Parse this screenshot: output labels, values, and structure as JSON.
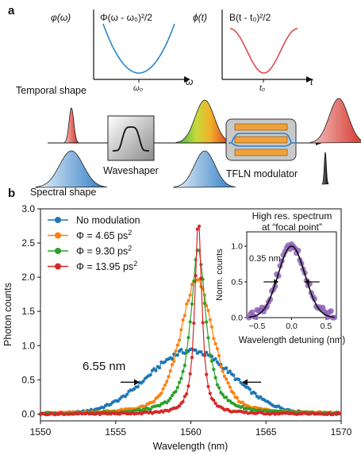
{
  "panel_a": {
    "label": "a",
    "phase_plot": {
      "ylabel": "φ(ω)",
      "curve_label": "Φ(ω - ω₀)²/2",
      "xlabel": "ω",
      "tick": "ω₀",
      "color": "#2b86c5"
    },
    "time_plot": {
      "ylabel": "ϕ(t)",
      "curve_label": "B(t - t₀)²/2",
      "xlabel": "t",
      "tick": "t₀",
      "color": "#e04b4b"
    },
    "temporal_label": "Temporal shape",
    "spectral_label": "Spectral shape",
    "waveshaper_label": "Waveshaper",
    "modulator_label": "TFLN modulator"
  },
  "chart_data": {
    "type": "line",
    "panel_label": "b",
    "xlabel": "Wavelength (nm)",
    "ylabel": "Photon counts",
    "xlim": [
      1550,
      1570
    ],
    "ylim": [
      -0.1,
      3.0
    ],
    "xticks": [
      "1550",
      "1555",
      "1560",
      "1565",
      "1570"
    ],
    "yticks": [
      "0.0",
      "0.5",
      "1.0",
      "1.5",
      "2.0",
      "2.5",
      "3.0"
    ],
    "legend_position": "top-left",
    "annotation": "6.55 nm",
    "annotation_range": [
      1556.7,
      1563.3
    ],
    "series": [
      {
        "name": "No modulation",
        "color": "#1f77b4",
        "peak": 0.93,
        "center": 1560.0,
        "fwhm": 6.55,
        "shape": "gaussian"
      },
      {
        "name": "Φ =  4.65 ps",
        "sup": "2",
        "color": "#ff7f0e",
        "peak": 1.95,
        "center": 1560.4,
        "fwhm": 2.6,
        "shape": "mixed"
      },
      {
        "name": "Φ =  9.30 ps",
        "sup": "2",
        "color": "#2ca02c",
        "peak": 2.42,
        "center": 1560.5,
        "fwhm": 1.2,
        "shape": "lorentz"
      },
      {
        "name": "Φ = 13.95 ps",
        "sup": "2",
        "color": "#d62728",
        "peak": 2.85,
        "center": 1560.5,
        "fwhm": 0.55,
        "shape": "lorentz"
      }
    ],
    "inset": {
      "title_line1": "High res. spectrum",
      "title_line2": "at “focal point”",
      "xlabel": "Wavelength detuning (nm)",
      "ylabel": "Norm. counts",
      "xlim": [
        -0.65,
        0.65
      ],
      "ylim": [
        0,
        1.2
      ],
      "xticks": [
        "−0.5",
        "0.0",
        "0.5"
      ],
      "yticks": [
        "0.0",
        "0.5",
        "1.0"
      ],
      "annotation": "0.35 nm",
      "fwhm": 0.35,
      "color": "#8e63b8"
    }
  }
}
